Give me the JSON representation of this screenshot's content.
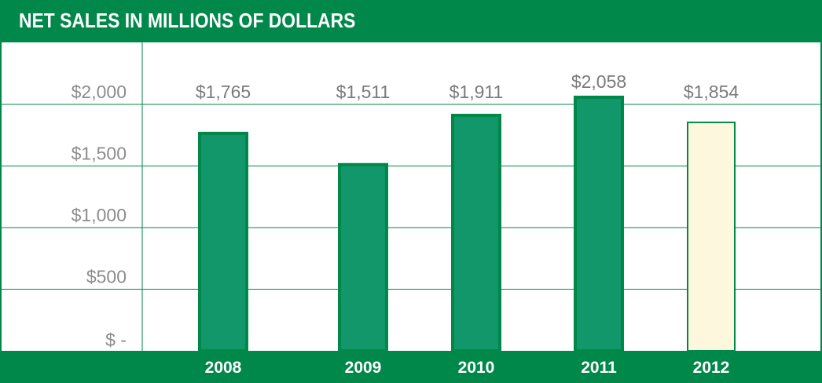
{
  "title": "NET SALES IN MILLIONS OF DOLLARS",
  "colors": {
    "brand_green": "#00874a",
    "bar_fill": "#11976a",
    "bar_stroke": "#00874a",
    "highlight_fill": "#fdf7dd",
    "gridline": "#00874a",
    "label_gray": "#8c8c8c"
  },
  "chart_data": {
    "type": "bar",
    "title": "NET SALES IN MILLIONS OF DOLLARS",
    "categories": [
      "2008",
      "2009",
      "2010",
      "2011",
      "2012"
    ],
    "values": [
      1765,
      1511,
      1911,
      2058,
      1854
    ],
    "data_labels": [
      "$1,765",
      "$1,511",
      "$1,911",
      "$2,058",
      "$1,854"
    ],
    "highlighted_category": "2012",
    "ylim": [
      0,
      2500
    ],
    "yticks": [
      0,
      500,
      1000,
      1500,
      2000
    ],
    "ytick_labels": [
      "$ -",
      "$500",
      "$1,000",
      "$1,500",
      "$2,000"
    ],
    "grid": true,
    "legend": "none",
    "xlabel": "",
    "ylabel": ""
  }
}
